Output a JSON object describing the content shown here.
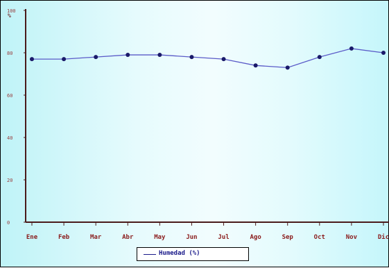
{
  "chart_data": {
    "type": "line",
    "categories": [
      "Ene",
      "Feb",
      "Mar",
      "Abr",
      "May",
      "Jun",
      "Jul",
      "Ago",
      "Sep",
      "Oct",
      "Nov",
      "Dic"
    ],
    "series": [
      {
        "name": "Humedad (%)",
        "values": [
          77,
          77,
          78,
          79,
          79,
          78,
          77,
          74,
          73,
          78,
          82,
          80
        ]
      }
    ],
    "ylim": [
      0,
      100
    ],
    "yticks": [
      0,
      20,
      40,
      60,
      80,
      100
    ],
    "yunit": "%",
    "grid": false,
    "legend_position": "bottom",
    "colors": {
      "line": "#5a5ac8",
      "marker": "#1a1a6a",
      "axis": "#4a1a1a",
      "tick_label": "#8a1c1c"
    }
  }
}
